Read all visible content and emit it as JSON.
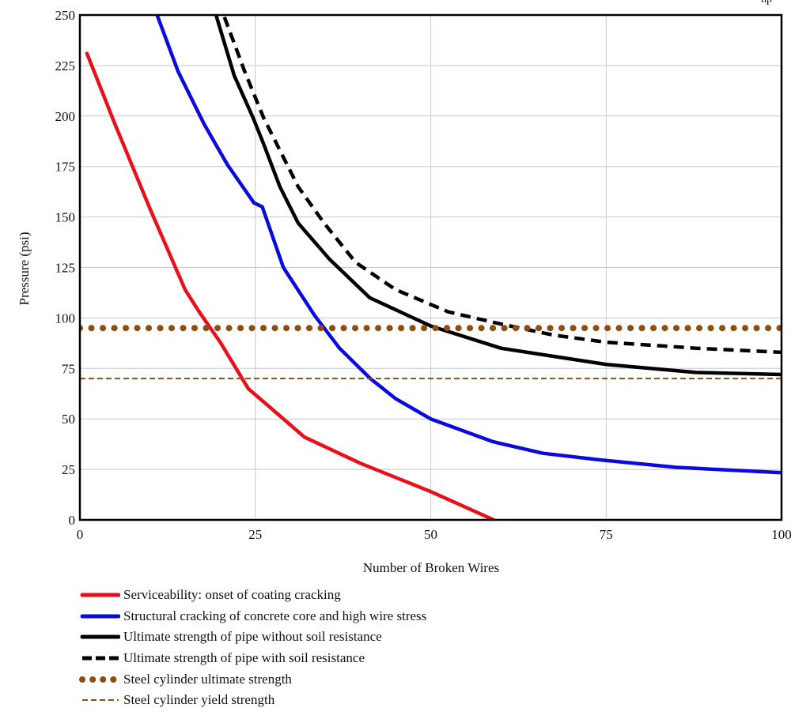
{
  "chart_data": {
    "type": "line",
    "title": "",
    "corner_annotation": "np",
    "xlabel": "Number of Broken Wires",
    "ylabel": "Pressure (psi)",
    "xlim": [
      0,
      100
    ],
    "ylim": [
      0,
      250
    ],
    "xticks": [
      "0",
      "25",
      "50",
      "75",
      "100"
    ],
    "yticks": [
      "0",
      "25",
      "50",
      "75",
      "100",
      "125",
      "150",
      "175",
      "200",
      "225",
      "250"
    ],
    "grid": true,
    "legend_position": "bottom",
    "series": [
      {
        "name": "Serviceability: onset of coating cracking",
        "color": "#e8101a",
        "style": "solid",
        "x": [
          1,
          5,
          10,
          15,
          17,
          20,
          24,
          28,
          32,
          40,
          50,
          59
        ],
        "y": [
          231,
          196,
          154,
          114,
          103,
          88,
          65,
          53,
          41,
          28,
          14,
          0
        ]
      },
      {
        "name": "Structural cracking of concrete core and high wire stress",
        "color": "#0a0adf",
        "style": "solid",
        "x": [
          11,
          14,
          17.7,
          21,
          24.8,
          26,
          29,
          33.5,
          37,
          41.4,
          45,
          50,
          58.9,
          66,
          74.2,
          85,
          100
        ],
        "y": [
          250,
          222,
          196,
          176,
          157,
          155,
          125,
          101,
          85,
          70,
          60,
          50,
          38.7,
          33,
          29.7,
          26,
          23.4
        ]
      },
      {
        "name": "Ultimate strength of pipe without soil resistance",
        "color": "#000000",
        "style": "solid",
        "x": [
          19.4,
          22,
          24.7,
          26.2,
          28.5,
          31.1,
          35.6,
          41.3,
          50,
          60,
          67.5,
          75,
          87.8,
          100
        ],
        "y": [
          250,
          220,
          199,
          186,
          165,
          147,
          129,
          110,
          96,
          85,
          81,
          77,
          73,
          72
        ]
      },
      {
        "name": "Ultimate strength of pipe with soil resistance",
        "color": "#000000",
        "style": "dashed",
        "x": [
          20.6,
          23.5,
          26.2,
          31.1,
          34.8,
          39.3,
          45,
          52.5,
          60,
          67.5,
          75,
          87.8,
          100
        ],
        "y": [
          249,
          222,
          199,
          165,
          147,
          127.5,
          114,
          103,
          97,
          91.5,
          88,
          85,
          83
        ]
      },
      {
        "name": "Steel cylinder ultimate strength",
        "color": "#8b4f14",
        "style": "dotted",
        "x": [
          0,
          100
        ],
        "y": [
          95,
          95
        ]
      },
      {
        "name": "Steel cylinder yield strength",
        "color": "#8b4f14",
        "style": "thin-dashed",
        "x": [
          0,
          100
        ],
        "y": [
          70,
          70
        ]
      }
    ]
  }
}
